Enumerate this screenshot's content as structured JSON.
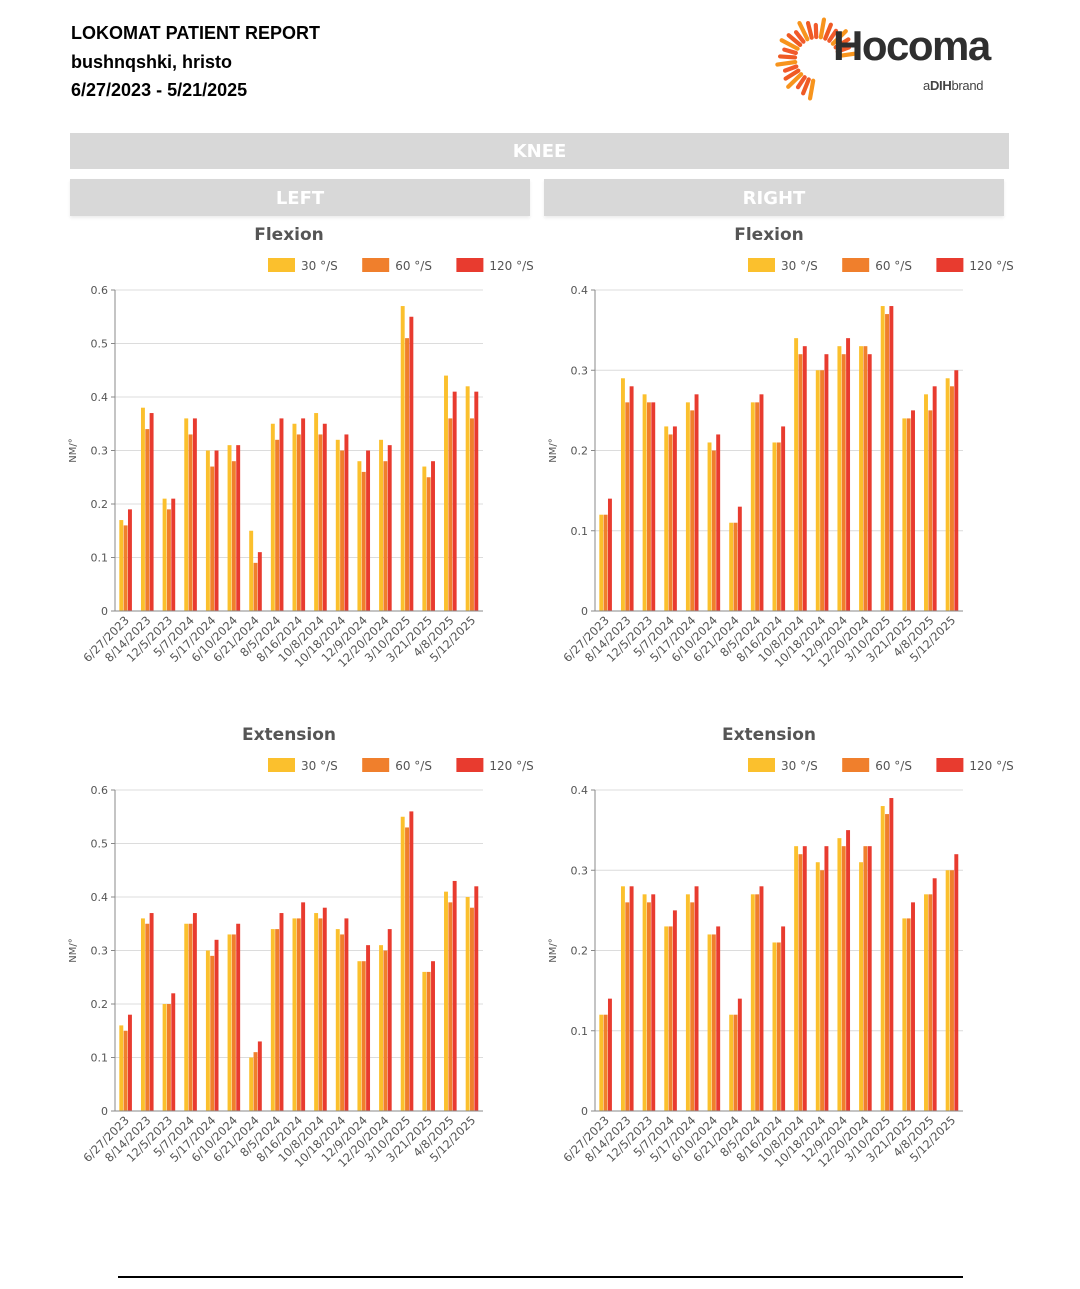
{
  "header": {
    "title": "LOKOMAT PATIENT REPORT",
    "patient": "bushnqshki, hristo",
    "date_range": "6/27/2023 - 5/21/2025"
  },
  "logo": {
    "brand": "Hocoma",
    "sub_prefix": "a",
    "sub_bold": "DIH",
    "sub_suffix": "brand",
    "colors": [
      "#f7941d",
      "#ef5a24",
      "#f15a2b"
    ]
  },
  "section": {
    "title": "KNEE",
    "left_label": "LEFT",
    "right_label": "RIGHT"
  },
  "series_colors": [
    "#fbc02d",
    "#f07f2c",
    "#e83b2f"
  ],
  "chart_data": [
    {
      "type": "bar",
      "side": "LEFT",
      "title": "Flexion",
      "ylabel": "NM/°",
      "ylim": [
        0,
        0.6
      ],
      "yticks": [
        0,
        0.1,
        0.2,
        0.3,
        0.4,
        0.5,
        0.6
      ],
      "legend_position": "top-right",
      "categories": [
        "6/27/2023",
        "8/14/2023",
        "12/5/2023",
        "5/7/2024",
        "5/17/2024",
        "6/10/2024",
        "6/21/2024",
        "8/5/2024",
        "8/16/2024",
        "10/8/2024",
        "10/18/2024",
        "12/9/2024",
        "12/20/2024",
        "3/10/2025",
        "3/21/2025",
        "4/8/2025",
        "5/12/2025"
      ],
      "series": [
        {
          "name": "30 °/S",
          "values": [
            0.17,
            0.38,
            0.21,
            0.36,
            0.3,
            0.31,
            0.15,
            0.35,
            0.35,
            0.37,
            0.32,
            0.28,
            0.32,
            0.57,
            0.27,
            0.44,
            0.42
          ]
        },
        {
          "name": "60 °/S",
          "values": [
            0.16,
            0.34,
            0.19,
            0.33,
            0.27,
            0.28,
            0.09,
            0.32,
            0.33,
            0.33,
            0.3,
            0.26,
            0.28,
            0.51,
            0.25,
            0.36,
            0.36
          ]
        },
        {
          "name": "120 °/S",
          "values": [
            0.19,
            0.37,
            0.21,
            0.36,
            0.3,
            0.31,
            0.11,
            0.36,
            0.36,
            0.35,
            0.33,
            0.3,
            0.31,
            0.55,
            0.28,
            0.41,
            0.41
          ]
        }
      ]
    },
    {
      "type": "bar",
      "side": "RIGHT",
      "title": "Flexion",
      "ylabel": "NM/°",
      "ylim": [
        0,
        0.4
      ],
      "yticks": [
        0,
        0.1,
        0.2,
        0.3,
        0.4
      ],
      "legend_position": "top-right",
      "categories": [
        "6/27/2023",
        "8/14/2023",
        "12/5/2023",
        "5/7/2024",
        "5/17/2024",
        "6/10/2024",
        "6/21/2024",
        "8/5/2024",
        "8/16/2024",
        "10/8/2024",
        "10/18/2024",
        "12/9/2024",
        "12/20/2024",
        "3/10/2025",
        "3/21/2025",
        "4/8/2025",
        "5/12/2025"
      ],
      "series": [
        {
          "name": "30 °/S",
          "values": [
            0.12,
            0.29,
            0.27,
            0.23,
            0.26,
            0.21,
            0.11,
            0.26,
            0.21,
            0.34,
            0.3,
            0.33,
            0.33,
            0.38,
            0.24,
            0.27,
            0.29
          ]
        },
        {
          "name": "60 °/S",
          "values": [
            0.12,
            0.26,
            0.26,
            0.22,
            0.25,
            0.2,
            0.11,
            0.26,
            0.21,
            0.32,
            0.3,
            0.32,
            0.33,
            0.37,
            0.24,
            0.25,
            0.28
          ]
        },
        {
          "name": "120 °/S",
          "values": [
            0.14,
            0.28,
            0.26,
            0.23,
            0.27,
            0.22,
            0.13,
            0.27,
            0.23,
            0.33,
            0.32,
            0.34,
            0.32,
            0.38,
            0.25,
            0.28,
            0.3
          ]
        }
      ]
    },
    {
      "type": "bar",
      "side": "LEFT",
      "title": "Extension",
      "ylabel": "NM/°",
      "ylim": [
        0,
        0.6
      ],
      "yticks": [
        0,
        0.1,
        0.2,
        0.3,
        0.4,
        0.5,
        0.6
      ],
      "legend_position": "top-right",
      "categories": [
        "6/27/2023",
        "8/14/2023",
        "12/5/2023",
        "5/7/2024",
        "5/17/2024",
        "6/10/2024",
        "6/21/2024",
        "8/5/2024",
        "8/16/2024",
        "10/8/2024",
        "10/18/2024",
        "12/9/2024",
        "12/20/2024",
        "3/10/2025",
        "3/21/2025",
        "4/8/2025",
        "5/12/2025"
      ],
      "series": [
        {
          "name": "30 °/S",
          "values": [
            0.16,
            0.36,
            0.2,
            0.35,
            0.3,
            0.33,
            0.1,
            0.34,
            0.36,
            0.37,
            0.34,
            0.28,
            0.31,
            0.55,
            0.26,
            0.41,
            0.4
          ]
        },
        {
          "name": "60 °/S",
          "values": [
            0.15,
            0.35,
            0.2,
            0.35,
            0.29,
            0.33,
            0.11,
            0.34,
            0.36,
            0.36,
            0.33,
            0.28,
            0.3,
            0.53,
            0.26,
            0.39,
            0.38
          ]
        },
        {
          "name": "120 °/S",
          "values": [
            0.18,
            0.37,
            0.22,
            0.37,
            0.32,
            0.35,
            0.13,
            0.37,
            0.39,
            0.38,
            0.36,
            0.31,
            0.34,
            0.56,
            0.28,
            0.43,
            0.42
          ]
        }
      ]
    },
    {
      "type": "bar",
      "side": "RIGHT",
      "title": "Extension",
      "ylabel": "NM/°",
      "ylim": [
        0,
        0.4
      ],
      "yticks": [
        0,
        0.1,
        0.2,
        0.3,
        0.4
      ],
      "legend_position": "top-right",
      "categories": [
        "6/27/2023",
        "8/14/2023",
        "12/5/2023",
        "5/7/2024",
        "5/17/2024",
        "6/10/2024",
        "6/21/2024",
        "8/5/2024",
        "8/16/2024",
        "10/8/2024",
        "10/18/2024",
        "12/9/2024",
        "12/20/2024",
        "3/10/2025",
        "3/21/2025",
        "4/8/2025",
        "5/12/2025"
      ],
      "series": [
        {
          "name": "30 °/S",
          "values": [
            0.12,
            0.28,
            0.27,
            0.23,
            0.27,
            0.22,
            0.12,
            0.27,
            0.21,
            0.33,
            0.31,
            0.34,
            0.31,
            0.38,
            0.24,
            0.27,
            0.3
          ]
        },
        {
          "name": "60 °/S",
          "values": [
            0.12,
            0.26,
            0.26,
            0.23,
            0.26,
            0.22,
            0.12,
            0.27,
            0.21,
            0.32,
            0.3,
            0.33,
            0.33,
            0.37,
            0.24,
            0.27,
            0.3
          ]
        },
        {
          "name": "120 °/S",
          "values": [
            0.14,
            0.28,
            0.27,
            0.25,
            0.28,
            0.23,
            0.14,
            0.28,
            0.23,
            0.33,
            0.33,
            0.35,
            0.33,
            0.39,
            0.26,
            0.29,
            0.32
          ]
        }
      ]
    }
  ]
}
